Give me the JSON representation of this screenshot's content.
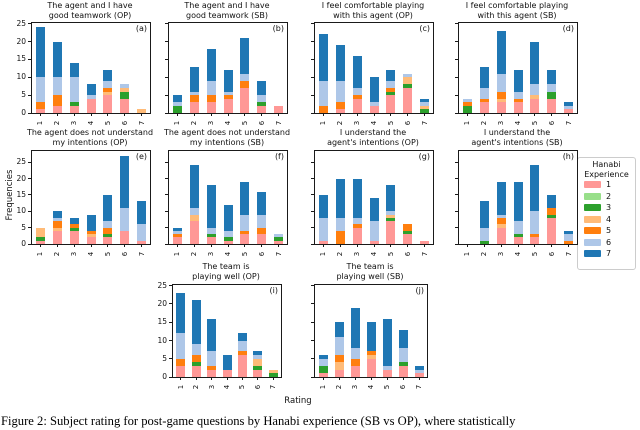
{
  "figure": {
    "ylabel": "Frequencies",
    "xlabel": "Rating",
    "caption": "Figure 2: Subject rating for post-game questions by Hanabi experience (SB vs OP), where statistically",
    "legend": {
      "title": "Hanabi\nExperience",
      "entries": [
        {
          "label": "1",
          "color": "#ff9896"
        },
        {
          "label": "2",
          "color": "#98df8a"
        },
        {
          "label": "3",
          "color": "#2ca02c"
        },
        {
          "label": "4",
          "color": "#ffbb78"
        },
        {
          "label": "5",
          "color": "#ff7f0e"
        },
        {
          "label": "6",
          "color": "#aec7e8"
        },
        {
          "label": "7",
          "color": "#1f77b4"
        }
      ]
    }
  },
  "chart_data": [
    {
      "type": "bar",
      "stacked": true,
      "id": "a",
      "panel_label": "(a)",
      "title": "The agent and I have\ngood teamwork (OP)",
      "categories": [
        "1",
        "2",
        "3",
        "4",
        "5",
        "6",
        "7"
      ],
      "ylim": [
        0,
        25.2
      ],
      "yticks": [
        0,
        5,
        10,
        15,
        20,
        25
      ],
      "y_labels_shown": true,
      "series": [
        {
          "name": "1",
          "values": [
            1,
            2,
            2,
            4,
            5,
            4,
            0
          ]
        },
        {
          "name": "2",
          "values": [
            0,
            0,
            0,
            0,
            0,
            0,
            0
          ]
        },
        {
          "name": "3",
          "values": [
            0,
            0,
            1,
            0,
            0,
            2,
            0
          ]
        },
        {
          "name": "4",
          "values": [
            0,
            0,
            0,
            0,
            1,
            1,
            1
          ]
        },
        {
          "name": "5",
          "values": [
            2,
            3,
            0,
            0,
            1,
            0,
            0
          ]
        },
        {
          "name": "6",
          "values": [
            7,
            5,
            7,
            1,
            2,
            1,
            0
          ]
        },
        {
          "name": "7",
          "values": [
            14,
            10,
            4,
            3,
            3,
            0,
            0
          ]
        }
      ]
    },
    {
      "type": "bar",
      "stacked": true,
      "id": "b",
      "panel_label": "(b)",
      "title": "The agent and I have\ngood teamwork (SB)",
      "categories": [
        "1",
        "2",
        "3",
        "4",
        "5",
        "6",
        "7"
      ],
      "ylim": [
        0,
        25.2
      ],
      "yticks": [
        0,
        5,
        10,
        15,
        20,
        25
      ],
      "y_labels_shown": false,
      "series": [
        {
          "name": "1",
          "values": [
            0,
            3,
            3,
            4,
            7,
            2,
            2
          ]
        },
        {
          "name": "2",
          "values": [
            0,
            0,
            0,
            0,
            0,
            0,
            0
          ]
        },
        {
          "name": "3",
          "values": [
            2,
            0,
            0,
            0,
            0,
            1,
            0
          ]
        },
        {
          "name": "4",
          "values": [
            0,
            0,
            0,
            0,
            0,
            0,
            0
          ]
        },
        {
          "name": "5",
          "values": [
            0,
            2,
            2,
            1,
            2,
            0,
            0
          ]
        },
        {
          "name": "6",
          "values": [
            1,
            1,
            4,
            1,
            2,
            2,
            0
          ]
        },
        {
          "name": "7",
          "values": [
            2,
            7,
            9,
            6,
            10,
            4,
            0
          ]
        }
      ]
    },
    {
      "type": "bar",
      "stacked": true,
      "id": "c",
      "panel_label": "(c)",
      "title": "I feel comfortable playing\nwith this agent (OP)",
      "categories": [
        "1",
        "2",
        "3",
        "4",
        "5",
        "6",
        "7"
      ],
      "ylim": [
        0,
        25.2
      ],
      "yticks": [
        0,
        5,
        10,
        15,
        20,
        25
      ],
      "y_labels_shown": false,
      "series": [
        {
          "name": "1",
          "values": [
            0,
            1,
            4,
            2,
            5,
            7,
            0
          ]
        },
        {
          "name": "2",
          "values": [
            0,
            0,
            0,
            0,
            0,
            0,
            0
          ]
        },
        {
          "name": "3",
          "values": [
            0,
            0,
            0,
            0,
            1,
            1,
            1
          ]
        },
        {
          "name": "4",
          "values": [
            0,
            0,
            0,
            0,
            0,
            2,
            1
          ]
        },
        {
          "name": "5",
          "values": [
            2,
            2,
            1,
            0,
            1,
            0,
            0
          ]
        },
        {
          "name": "6",
          "values": [
            7,
            6,
            2,
            1,
            2,
            1,
            1
          ]
        },
        {
          "name": "7",
          "values": [
            13,
            10,
            9,
            7,
            3,
            0,
            1
          ]
        }
      ]
    },
    {
      "type": "bar",
      "stacked": true,
      "id": "d",
      "panel_label": "(d)",
      "title": "I feel comfortable playing\nwith this agent (SB)",
      "categories": [
        "1",
        "2",
        "3",
        "4",
        "5",
        "6",
        "7"
      ],
      "ylim": [
        0,
        25.2
      ],
      "yticks": [
        0,
        5,
        10,
        15,
        20,
        25
      ],
      "y_labels_shown": false,
      "series": [
        {
          "name": "1",
          "values": [
            0,
            3,
            3,
            3,
            4,
            4,
            1
          ]
        },
        {
          "name": "2",
          "values": [
            0,
            0,
            0,
            0,
            0,
            0,
            0
          ]
        },
        {
          "name": "3",
          "values": [
            2,
            0,
            0,
            0,
            0,
            2,
            0
          ]
        },
        {
          "name": "4",
          "values": [
            0,
            0,
            1,
            0,
            1,
            0,
            0
          ]
        },
        {
          "name": "5",
          "values": [
            1,
            1,
            2,
            1,
            0,
            0,
            0
          ]
        },
        {
          "name": "6",
          "values": [
            1,
            3,
            5,
            2,
            3,
            2,
            1
          ]
        },
        {
          "name": "7",
          "values": [
            0,
            6,
            12,
            6,
            12,
            4,
            1
          ]
        }
      ]
    },
    {
      "type": "bar",
      "stacked": true,
      "id": "e",
      "panel_label": "(e)",
      "title": "The agent does not understand\nmy intentions (OP)",
      "categories": [
        "1",
        "2",
        "3",
        "4",
        "5",
        "6",
        "7"
      ],
      "ylim": [
        0,
        28.4
      ],
      "yticks": [
        0,
        5,
        10,
        15,
        20,
        25
      ],
      "y_labels_shown": true,
      "series": [
        {
          "name": "1",
          "values": [
            1,
            4,
            4,
            2,
            2,
            4,
            1
          ]
        },
        {
          "name": "2",
          "values": [
            0,
            0,
            0,
            0,
            0,
            0,
            0
          ]
        },
        {
          "name": "3",
          "values": [
            1,
            0,
            1,
            0,
            1,
            0,
            0
          ]
        },
        {
          "name": "4",
          "values": [
            3,
            1,
            0,
            1,
            0,
            0,
            0
          ]
        },
        {
          "name": "5",
          "values": [
            0,
            2,
            1,
            1,
            2,
            0,
            0
          ]
        },
        {
          "name": "6",
          "values": [
            0,
            1,
            0,
            0,
            2,
            7,
            5
          ]
        },
        {
          "name": "7",
          "values": [
            0,
            2,
            2,
            5,
            8,
            16,
            7
          ]
        }
      ]
    },
    {
      "type": "bar",
      "stacked": true,
      "id": "f",
      "panel_label": "(f)",
      "title": "The agent does not understand\nmy intentions (SB)",
      "categories": [
        "1",
        "2",
        "3",
        "4",
        "5",
        "6",
        "7"
      ],
      "ylim": [
        0,
        28.4
      ],
      "yticks": [
        0,
        5,
        10,
        15,
        20,
        25
      ],
      "y_labels_shown": false,
      "series": [
        {
          "name": "1",
          "values": [
            2,
            7,
            2,
            1,
            3,
            3,
            1
          ]
        },
        {
          "name": "2",
          "values": [
            0,
            0,
            0,
            0,
            0,
            0,
            0
          ]
        },
        {
          "name": "3",
          "values": [
            0,
            0,
            1,
            1,
            0,
            0,
            1
          ]
        },
        {
          "name": "4",
          "values": [
            0,
            2,
            0,
            0,
            0,
            0,
            0
          ]
        },
        {
          "name": "5",
          "values": [
            1,
            0,
            0,
            0,
            1,
            2,
            0
          ]
        },
        {
          "name": "6",
          "values": [
            1,
            2,
            2,
            2,
            5,
            4,
            1
          ]
        },
        {
          "name": "7",
          "values": [
            1,
            13,
            13,
            8,
            10,
            7,
            0
          ]
        }
      ]
    },
    {
      "type": "bar",
      "stacked": true,
      "id": "g",
      "panel_label": "(g)",
      "title": "I understand the\nagent's intentions (OP)",
      "categories": [
        "1",
        "2",
        "3",
        "4",
        "5",
        "6",
        "7"
      ],
      "ylim": [
        0,
        28.4
      ],
      "yticks": [
        0,
        5,
        10,
        15,
        20,
        25
      ],
      "y_labels_shown": false,
      "series": [
        {
          "name": "1",
          "values": [
            1,
            0,
            5,
            1,
            7,
            3,
            1
          ]
        },
        {
          "name": "2",
          "values": [
            0,
            0,
            0,
            0,
            0,
            0,
            0
          ]
        },
        {
          "name": "3",
          "values": [
            0,
            0,
            0,
            0,
            1,
            1,
            0
          ]
        },
        {
          "name": "4",
          "values": [
            0,
            0,
            0,
            0,
            1,
            0,
            0
          ]
        },
        {
          "name": "5",
          "values": [
            0,
            4,
            1,
            0,
            0,
            2,
            0
          ]
        },
        {
          "name": "6",
          "values": [
            7,
            4,
            2,
            6,
            1,
            0,
            0
          ]
        },
        {
          "name": "7",
          "values": [
            7,
            12,
            12,
            7,
            8,
            0,
            0
          ]
        }
      ]
    },
    {
      "type": "bar",
      "stacked": true,
      "id": "h",
      "panel_label": "(h)",
      "title": "I understand the\nagent's intentions (SB)",
      "categories": [
        "1",
        "2",
        "3",
        "4",
        "5",
        "6",
        "7"
      ],
      "ylim": [
        0,
        28.4
      ],
      "yticks": [
        0,
        5,
        10,
        15,
        20,
        25
      ],
      "y_labels_shown": false,
      "series": [
        {
          "name": "1",
          "values": [
            0,
            0,
            5,
            2,
            2,
            8,
            0
          ]
        },
        {
          "name": "2",
          "values": [
            0,
            0,
            0,
            0,
            0,
            0,
            0
          ]
        },
        {
          "name": "3",
          "values": [
            0,
            1,
            0,
            1,
            0,
            1,
            0
          ]
        },
        {
          "name": "4",
          "values": [
            0,
            0,
            1,
            0,
            0,
            0,
            0
          ]
        },
        {
          "name": "5",
          "values": [
            0,
            0,
            2,
            0,
            1,
            2,
            1
          ]
        },
        {
          "name": "6",
          "values": [
            0,
            4,
            1,
            4,
            7,
            0,
            2
          ]
        },
        {
          "name": "7",
          "values": [
            0,
            8,
            10,
            12,
            14,
            4,
            1
          ]
        }
      ]
    },
    {
      "type": "bar",
      "stacked": true,
      "id": "i",
      "panel_label": "(i)",
      "title": "The team is\nplaying well (OP)",
      "categories": [
        "1",
        "2",
        "3",
        "4",
        "5",
        "6",
        "7"
      ],
      "ylim": [
        0,
        25.2
      ],
      "yticks": [
        0,
        5,
        10,
        15,
        20,
        25
      ],
      "y_labels_shown": true,
      "series": [
        {
          "name": "1",
          "values": [
            3,
            3,
            2,
            2,
            6,
            2,
            0
          ]
        },
        {
          "name": "2",
          "values": [
            0,
            0,
            0,
            0,
            0,
            0,
            0
          ]
        },
        {
          "name": "3",
          "values": [
            0,
            1,
            0,
            0,
            0,
            1,
            1
          ]
        },
        {
          "name": "4",
          "values": [
            0,
            0,
            0,
            0,
            0,
            2,
            1
          ]
        },
        {
          "name": "5",
          "values": [
            2,
            2,
            1,
            0,
            1,
            0,
            0
          ]
        },
        {
          "name": "6",
          "values": [
            7,
            3,
            4,
            0,
            3,
            1,
            0
          ]
        },
        {
          "name": "7",
          "values": [
            11,
            12,
            9,
            4,
            2,
            1,
            0
          ]
        }
      ]
    },
    {
      "type": "bar",
      "stacked": true,
      "id": "j",
      "panel_label": "(j)",
      "title": "The team is\nplaying well (SB)",
      "categories": [
        "1",
        "2",
        "3",
        "4",
        "5",
        "6",
        "7"
      ],
      "ylim": [
        0,
        25.2
      ],
      "yticks": [
        0,
        5,
        10,
        15,
        20,
        25
      ],
      "y_labels_shown": false,
      "series": [
        {
          "name": "1",
          "values": [
            1,
            2,
            3,
            5,
            2,
            3,
            1
          ]
        },
        {
          "name": "2",
          "values": [
            0,
            0,
            0,
            0,
            0,
            0,
            0
          ]
        },
        {
          "name": "3",
          "values": [
            2,
            0,
            0,
            0,
            0,
            1,
            0
          ]
        },
        {
          "name": "4",
          "values": [
            0,
            2,
            0,
            1,
            0,
            0,
            0
          ]
        },
        {
          "name": "5",
          "values": [
            0,
            2,
            2,
            1,
            0,
            0,
            0
          ]
        },
        {
          "name": "6",
          "values": [
            2,
            5,
            3,
            0,
            1,
            4,
            1
          ]
        },
        {
          "name": "7",
          "values": [
            1,
            4,
            11,
            8,
            13,
            5,
            1
          ]
        }
      ]
    }
  ]
}
